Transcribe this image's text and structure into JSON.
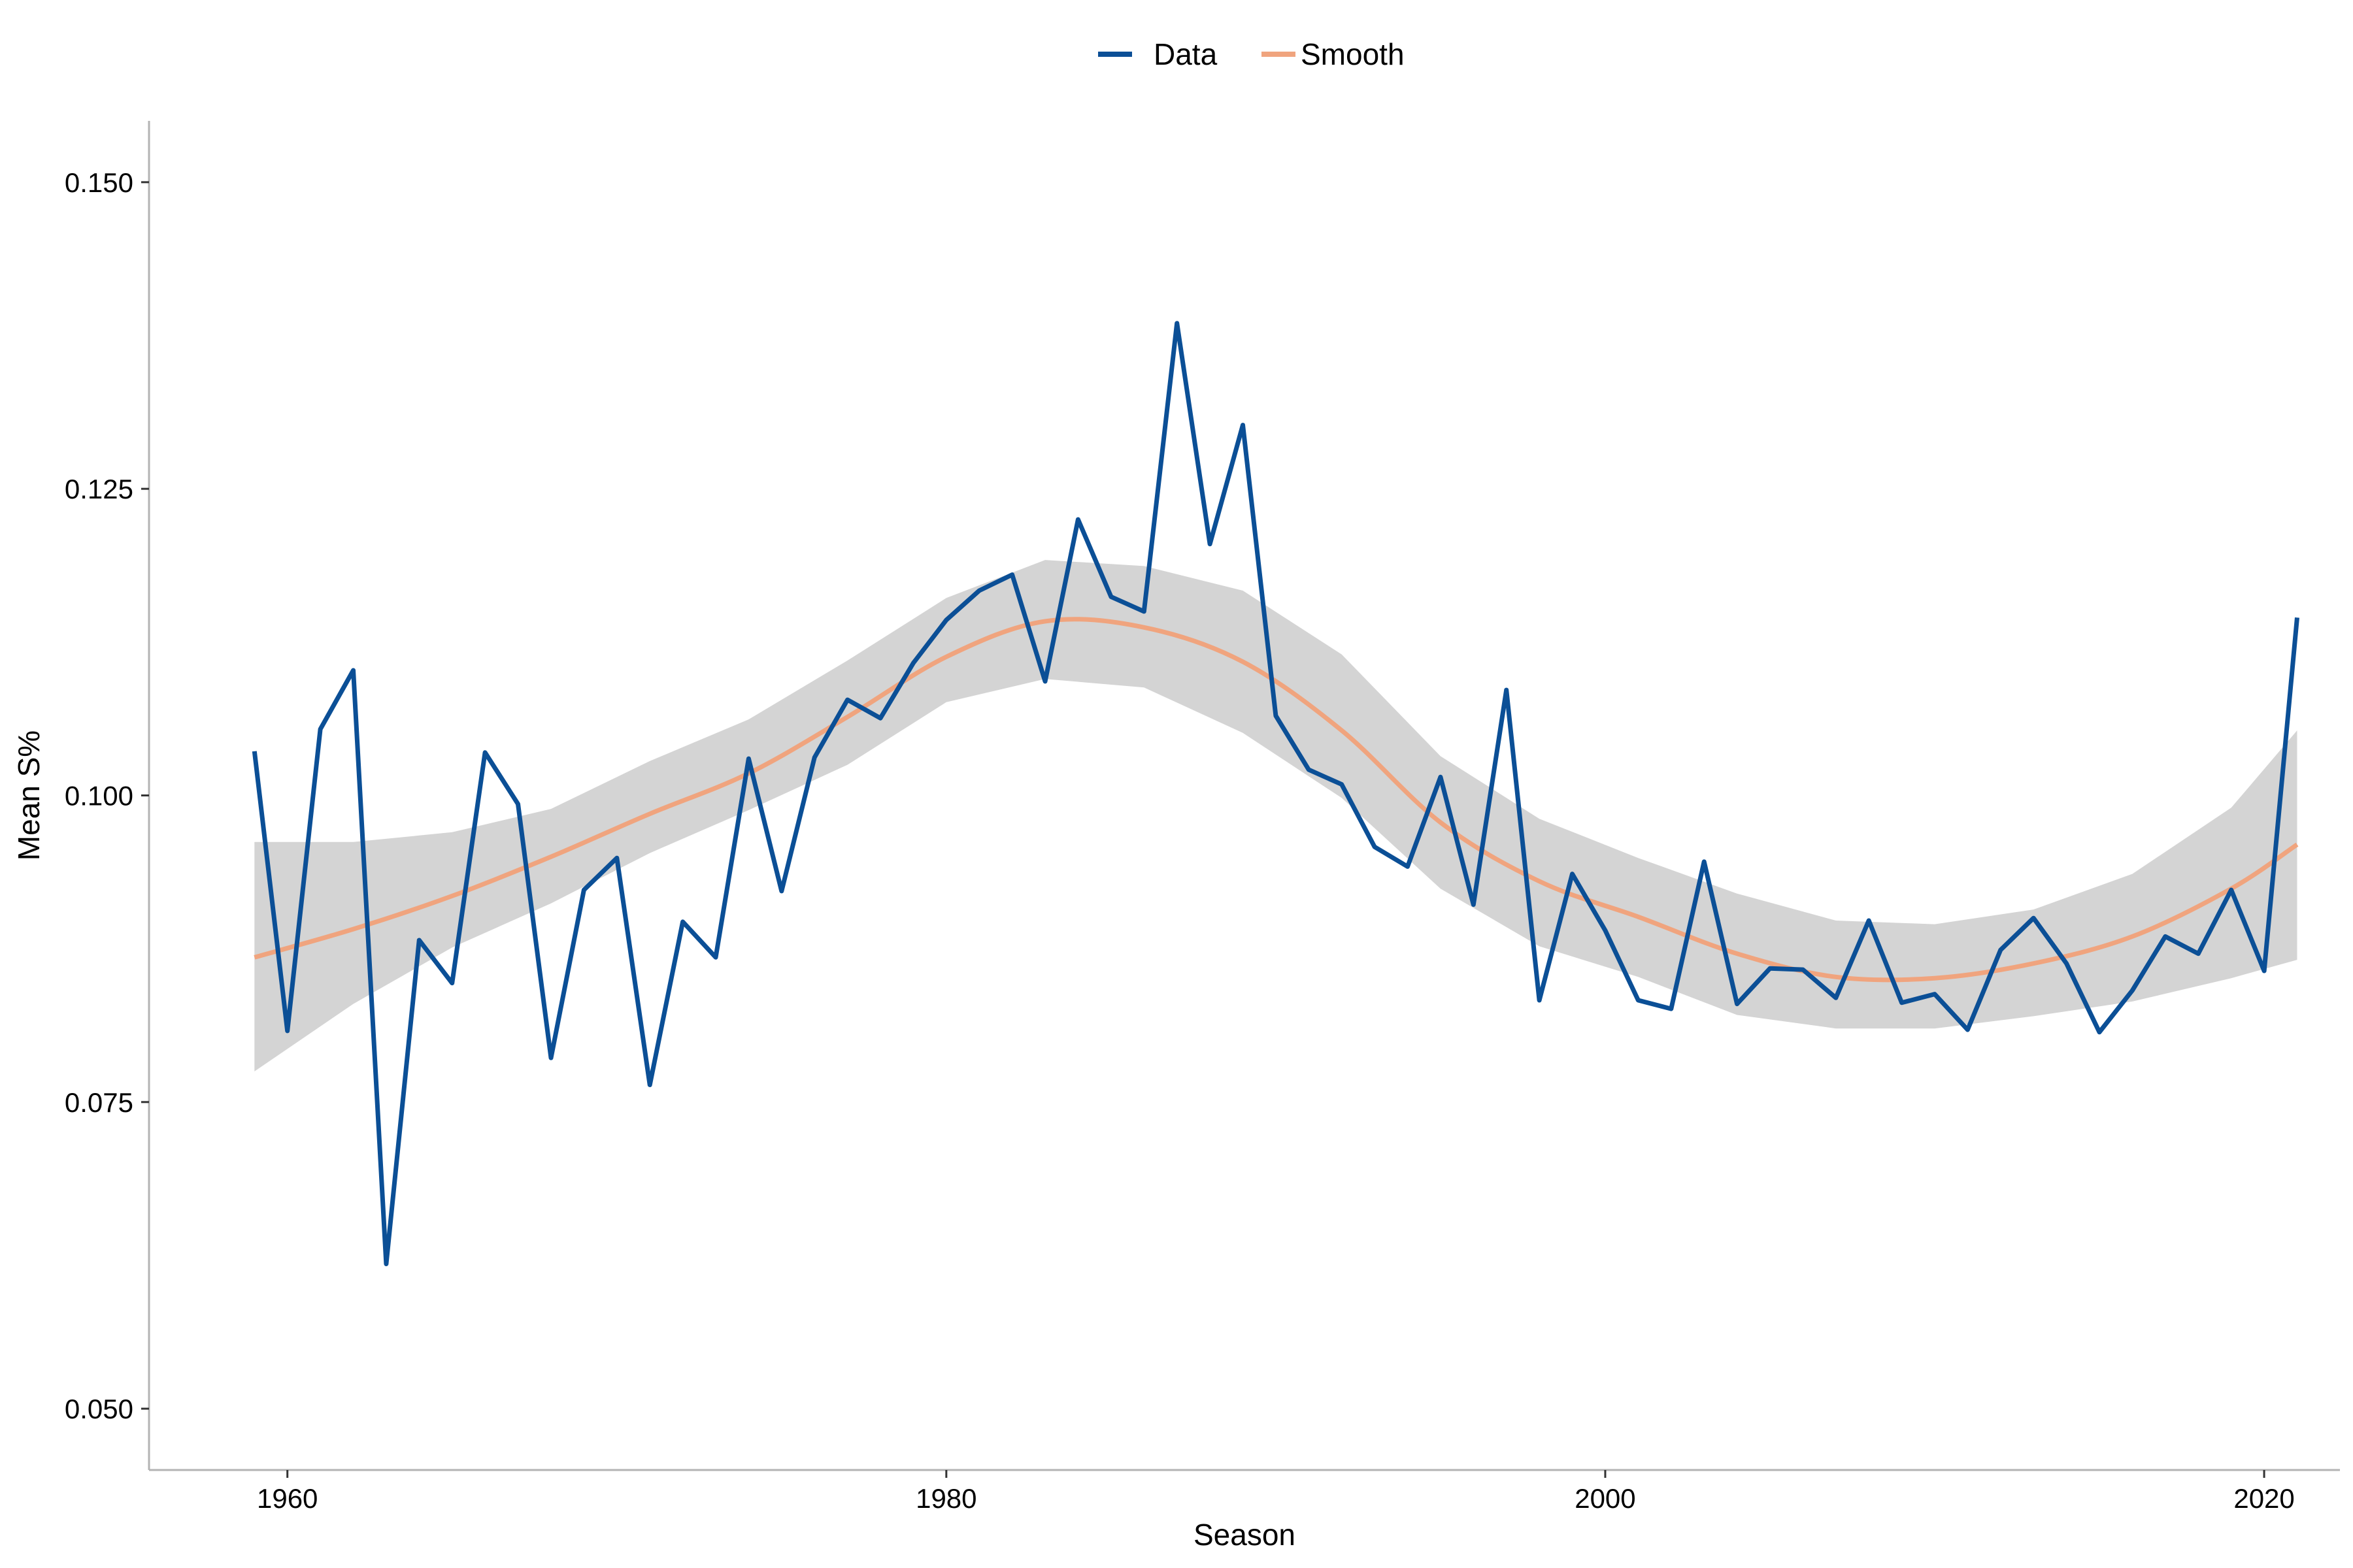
{
  "chart_data": {
    "type": "line",
    "title": "",
    "xlabel": "Season",
    "ylabel": "Mean S%",
    "xlim": [
      1955.8,
      2022.3
    ],
    "ylim": [
      0.045,
      0.155
    ],
    "x_ticks": [
      1960,
      1980,
      2000,
      2020
    ],
    "x_tick_labels": [
      "1960",
      "1980",
      "2000",
      "2020"
    ],
    "y_ticks": [
      0.05,
      0.075,
      0.1,
      0.125,
      0.15
    ],
    "y_tick_labels": [
      "0.050",
      "0.075",
      "0.100",
      "0.125",
      "0.150"
    ],
    "grid": false,
    "legend": {
      "placement": "top-center",
      "entries": [
        "Data",
        "Smooth"
      ]
    },
    "colors": {
      "data": "#0b4f96",
      "smooth": "#f0a47e",
      "band": "#d4d4d4",
      "axis": "#b3b3b3"
    },
    "series": [
      {
        "name": "Data",
        "x": [
          1959,
          1960,
          1961,
          1962,
          1963,
          1964,
          1965,
          1966,
          1967,
          1968,
          1969,
          1970,
          1971,
          1972,
          1973,
          1974,
          1975,
          1976,
          1977,
          1978,
          1979,
          1980,
          1981,
          1982,
          1983,
          1984,
          1985,
          1986,
          1987,
          1988,
          1989,
          1990,
          1991,
          1992,
          1993,
          1994,
          1995,
          1996,
          1997,
          1998,
          1999,
          2000,
          2001,
          2002,
          2003,
          2004,
          2005,
          2006,
          2007,
          2008,
          2009,
          2010,
          2011,
          2012,
          2013,
          2014,
          2015,
          2016,
          2017,
          2018,
          2019,
          2020,
          2021
        ],
        "values": [
          0.1036,
          0.0808,
          0.1054,
          0.1102,
          0.0618,
          0.0882,
          0.0847,
          0.1035,
          0.0993,
          0.0786,
          0.0923,
          0.0949,
          0.0764,
          0.0897,
          0.0868,
          0.103,
          0.0922,
          0.1031,
          0.1078,
          0.1063,
          0.1108,
          0.1143,
          0.1167,
          0.118,
          0.1093,
          0.1225,
          0.1162,
          0.115,
          0.1385,
          0.1205,
          0.1302,
          0.1065,
          0.1021,
          0.1009,
          0.0958,
          0.0942,
          0.1015,
          0.0911,
          0.1086,
          0.0833,
          0.0936,
          0.089,
          0.0833,
          0.0826,
          0.0946,
          0.083,
          0.0859,
          0.0858,
          0.0835,
          0.0898,
          0.0831,
          0.0838,
          0.0809,
          0.0874,
          0.09,
          0.0863,
          0.0807,
          0.0841,
          0.0885,
          0.0871,
          0.0923,
          0.0857,
          0.1145
        ]
      },
      {
        "name": "Smooth",
        "x": [
          1959,
          1962,
          1965,
          1968,
          1971,
          1974,
          1977,
          1980,
          1983,
          1986,
          1989,
          1992,
          1995,
          1998,
          2001,
          2004,
          2007,
          2010,
          2013,
          2016,
          2019,
          2021
        ],
        "values": [
          0.0868,
          0.0891,
          0.0918,
          0.095,
          0.0985,
          0.1018,
          0.1064,
          0.1113,
          0.1142,
          0.1137,
          0.1109,
          0.1053,
          0.0978,
          0.093,
          0.0901,
          0.0871,
          0.0852,
          0.0851,
          0.0863,
          0.0885,
          0.0924,
          0.096
        ],
        "lower": [
          0.0775,
          0.083,
          0.0876,
          0.0912,
          0.0953,
          0.0988,
          0.1025,
          0.1076,
          0.1095,
          0.1088,
          0.1051,
          0.0998,
          0.0924,
          0.0877,
          0.0852,
          0.0821,
          0.081,
          0.081,
          0.082,
          0.0832,
          0.0851,
          0.0866
        ],
        "upper": [
          0.0962,
          0.0962,
          0.097,
          0.0989,
          0.1028,
          0.1062,
          0.111,
          0.1161,
          0.1192,
          0.1187,
          0.1167,
          0.1115,
          0.1032,
          0.0981,
          0.0949,
          0.092,
          0.0898,
          0.0895,
          0.0907,
          0.0936,
          0.099,
          0.1053
        ]
      }
    ]
  }
}
